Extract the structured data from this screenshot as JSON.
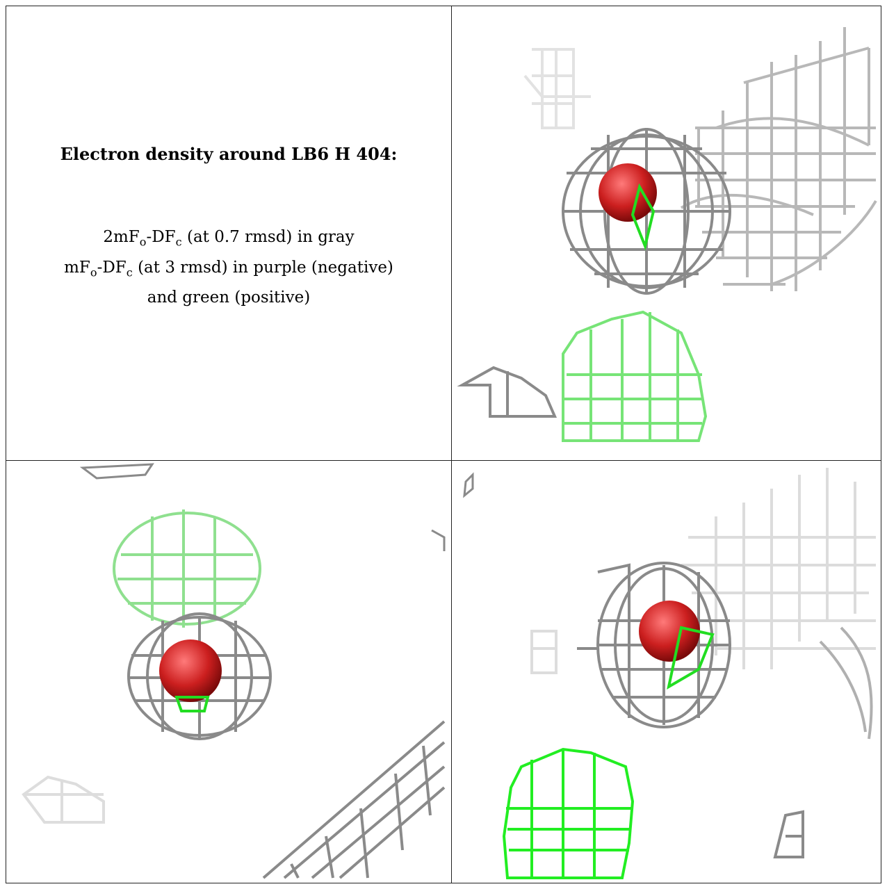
{
  "title": "Electron density around LB6 H 404:",
  "legend": {
    "line1_prefix": "2mF",
    "line1_sub1": "o",
    "line1_mid": "-DF",
    "line1_sub2": "c",
    "line1_suffix": " (at 0.7 rmsd) in gray",
    "line2_prefix": "mF",
    "line2_sub1": "o",
    "line2_mid": "-DF",
    "line2_sub2": "c",
    "line2_suffix": " (at 3 rmsd) in purple (negative)",
    "line3": "and green (positive)"
  },
  "colors": {
    "mesh_gray": "#8a8a8a",
    "mesh_light": "#cfcfcf",
    "positive_green": "#22dd22",
    "atom_red": "#cc1f1f",
    "border": "#222222"
  }
}
